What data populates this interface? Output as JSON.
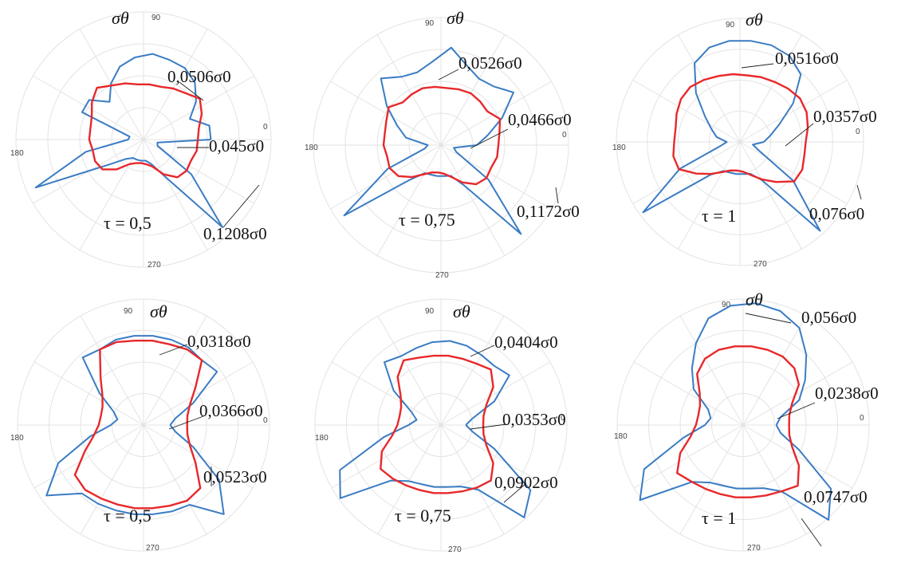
{
  "chart_data": [
    {
      "type": "polar",
      "ylabel": "σθ",
      "theta_tick_labels": [
        "0",
        "90",
        "180",
        "270"
      ],
      "grid": true,
      "parameter": "τ = 0,5",
      "annotations": [
        "0,0506σ0",
        "0,045σ0",
        "0,1208σ0"
      ],
      "series": [
        {
          "color": "#3a7cc4",
          "r": [
            0.57,
            0.57,
            0.43,
            0.55,
            0.65,
            0.7,
            0.71,
            0.73,
            0.7,
            0.65,
            0.55,
            0.43,
            0.57,
            0.57,
            0.12,
            0.13,
            0.5,
            1,
            0.36,
            0.22,
            0.18,
            0.18,
            0.18,
            0.18,
            0.22,
            0.36,
            1,
            0.5,
            0.13,
            0.12
          ]
        },
        {
          "color": "#e8282b",
          "r": [
            0.46,
            0.48,
            0.54,
            0.59,
            0.53,
            0.5,
            0.47,
            0.47,
            0.47,
            0.5,
            0.53,
            0.59,
            0.54,
            0.48,
            0.46,
            0.46,
            0.44,
            0.45,
            0.43,
            0.34,
            0.24,
            0.21,
            0.2,
            0.21,
            0.24,
            0.34,
            0.43,
            0.45,
            0.44,
            0.46
          ]
        }
      ]
    },
    {
      "type": "polar",
      "ylabel": "σθ",
      "theta_tick_labels": [
        "0",
        "90",
        "180",
        "270"
      ],
      "grid": true,
      "parameter": "τ = 0,75",
      "annotations": [
        "0,0526σ0",
        "0,0466σ0",
        "0,1172σ0"
      ],
      "series": [
        {
          "color": "#3a7cc4",
          "r": [
            0.3,
            0.4,
            0.56,
            0.75,
            0.66,
            0.64,
            0.7,
            0.82,
            0.7,
            0.64,
            0.66,
            0.75,
            0.56,
            0.4,
            0.3,
            0.11,
            0.14,
            0.49,
            1,
            0.39,
            0.27,
            0.26,
            0.26,
            0.26,
            0.27,
            0.39,
            1,
            0.49,
            0.14,
            0.11
          ]
        },
        {
          "color": "#e8282b",
          "r": [
            0.48,
            0.5,
            0.54,
            0.48,
            0.49,
            0.5,
            0.49,
            0.48,
            0.49,
            0.5,
            0.49,
            0.48,
            0.54,
            0.5,
            0.48,
            0.48,
            0.46,
            0.47,
            0.44,
            0.36,
            0.28,
            0.24,
            0.23,
            0.24,
            0.28,
            0.36,
            0.44,
            0.47,
            0.46,
            0.48
          ]
        }
      ]
    },
    {
      "type": "polar",
      "ylabel": "σθ",
      "theta_tick_labels": [
        "0",
        "90",
        "180",
        "270"
      ],
      "grid": true,
      "parameter": "τ = 1",
      "annotations": [
        "0,0516σ0",
        "0,0357σ0",
        "0,076σ0"
      ],
      "series": [
        {
          "color": "#3a7cc4",
          "r": [
            0.2,
            0.26,
            0.36,
            0.55,
            0.76,
            0.83,
            0.85,
            0.85,
            0.85,
            0.83,
            0.76,
            0.55,
            0.36,
            0.26,
            0.2,
            0.11,
            0.17,
            0.55,
            1,
            0.37,
            0.28,
            0.27,
            0.27,
            0.27,
            0.28,
            0.37,
            1,
            0.55,
            0.17,
            0.11
          ]
        },
        {
          "color": "#e8282b",
          "r": [
            0.55,
            0.58,
            0.61,
            0.62,
            0.6,
            0.58,
            0.57,
            0.56,
            0.57,
            0.58,
            0.6,
            0.62,
            0.61,
            0.58,
            0.55,
            0.55,
            0.57,
            0.56,
            0.45,
            0.36,
            0.29,
            0.25,
            0.24,
            0.25,
            0.29,
            0.36,
            0.45,
            0.56,
            0.57,
            0.55
          ]
        }
      ]
    },
    {
      "type": "polar",
      "ylabel": "σθ",
      "theta_tick_labels": [
        "0",
        "90",
        "180",
        "270"
      ],
      "grid": true,
      "parameter": "τ = 0,5",
      "annotations": [
        "0,0318σ0",
        "0,0366σ0",
        "0,0523σ0"
      ],
      "series": [
        {
          "color": "#3a7cc4",
          "r": [
            0.22,
            0.27,
            0.45,
            0.75,
            0.72,
            0.74,
            0.74,
            0.74,
            0.74,
            0.74,
            0.72,
            0.75,
            0.45,
            0.27,
            0.22,
            0.27,
            0.45,
            0.77,
            0.99,
            0.76,
            0.75,
            0.74,
            0.74,
            0.74,
            0.75,
            0.76,
            0.99,
            0.77,
            0.45,
            0.27
          ]
        },
        {
          "color": "#e8282b",
          "r": [
            0.36,
            0.37,
            0.42,
            0.53,
            0.72,
            0.72,
            0.7,
            0.7,
            0.7,
            0.72,
            0.72,
            0.53,
            0.42,
            0.37,
            0.36,
            0.37,
            0.42,
            0.53,
            0.7,
            0.72,
            0.7,
            0.69,
            0.69,
            0.69,
            0.7,
            0.72,
            0.7,
            0.53,
            0.42,
            0.37
          ]
        }
      ]
    },
    {
      "type": "polar",
      "ylabel": "σθ",
      "theta_tick_labels": [
        "0",
        "90",
        "180",
        "270"
      ],
      "grid": true,
      "parameter": "τ = 0,75",
      "annotations": [
        "0,0404σ0",
        "0,0353σ0",
        "0,0902σ0"
      ],
      "series": [
        {
          "color": "#3a7cc4",
          "r": [
            0.2,
            0.26,
            0.47,
            0.68,
            0.64,
            0.65,
            0.67,
            0.68,
            0.67,
            0.65,
            0.64,
            0.68,
            0.47,
            0.26,
            0.2,
            0.26,
            0.47,
            0.89,
            1,
            0.6,
            0.52,
            0.5,
            0.5,
            0.5,
            0.52,
            0.6,
            1,
            0.89,
            0.47,
            0.26
          ]
        },
        {
          "color": "#e8282b",
          "r": [
            0.34,
            0.35,
            0.4,
            0.52,
            0.6,
            0.57,
            0.56,
            0.56,
            0.56,
            0.57,
            0.6,
            0.52,
            0.4,
            0.35,
            0.34,
            0.35,
            0.4,
            0.52,
            0.6,
            0.58,
            0.56,
            0.55,
            0.55,
            0.55,
            0.56,
            0.58,
            0.6,
            0.52,
            0.4,
            0.35
          ]
        }
      ]
    },
    {
      "type": "polar",
      "ylabel": "σθ",
      "theta_tick_labels": [
        "0",
        "90",
        "180",
        "270"
      ],
      "grid": true,
      "parameter": "τ = 1",
      "annotations": [
        "0,056σ0",
        "0,0238σ0",
        "0,0747σ0"
      ],
      "series": [
        {
          "color": "#3a7cc4",
          "r": [
            0.26,
            0.3,
            0.48,
            0.6,
            0.74,
            0.88,
            0.94,
            0.96,
            0.94,
            0.88,
            0.74,
            0.6,
            0.48,
            0.3,
            0.26,
            0.3,
            0.48,
            0.85,
            1,
            0.6,
            0.52,
            0.5,
            0.5,
            0.5,
            0.52,
            0.6,
            1,
            0.85,
            0.48,
            0.3
          ]
        },
        {
          "color": "#e8282b",
          "r": [
            0.36,
            0.37,
            0.42,
            0.54,
            0.6,
            0.62,
            0.62,
            0.62,
            0.62,
            0.62,
            0.6,
            0.54,
            0.42,
            0.37,
            0.36,
            0.37,
            0.42,
            0.54,
            0.64,
            0.6,
            0.58,
            0.57,
            0.57,
            0.57,
            0.58,
            0.6,
            0.64,
            0.54,
            0.42,
            0.37
          ]
        }
      ]
    }
  ]
}
